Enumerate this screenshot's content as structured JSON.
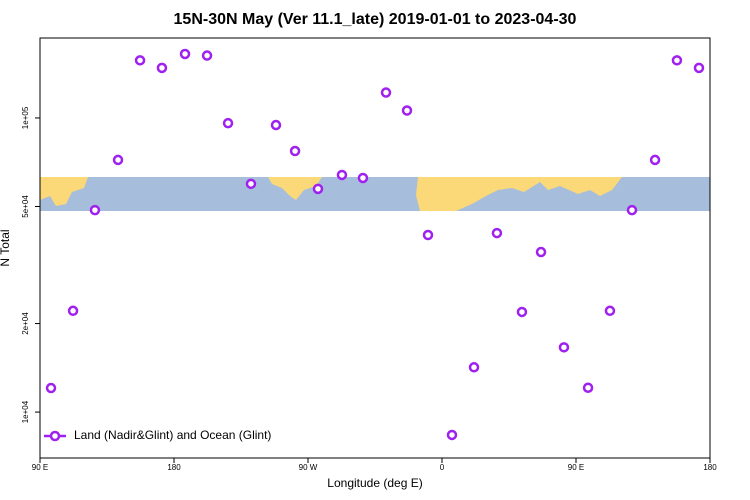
{
  "chart_data": {
    "type": "scatter",
    "title": "15N-30N May (Ver 11.1_late)   2019-01-01 to 2023-04-30",
    "x_label": "Longitude (deg E)",
    "y_label": "N Total",
    "x": [
      97.4,
      112.2,
      126.9,
      142.4,
      157.2,
      171.9,
      187.4,
      202.2,
      216.3,
      231.7,
      248.5,
      261.3,
      276.7,
      292.8,
      306.9,
      322.4,
      336.5,
      350.6,
      366.7,
      381.5,
      396.9,
      413.7,
      426.5,
      441.9,
      458.1,
      472.8,
      487.6,
      503.1,
      517.8,
      532.6
    ],
    "series": [
      {
        "name": "Land (Nadir&Glint) and Ocean (Glint)",
        "color": "#a020f0",
        "values": [
          12070,
          22100,
          48600,
          72000,
          157000,
          148000,
          165000,
          163000,
          96000,
          59700,
          94600,
          77200,
          57400,
          64000,
          62500,
          122000,
          106000,
          40000,
          8360,
          14200,
          40600,
          21900,
          35000,
          16600,
          12100,
          22100,
          48600,
          72000,
          157000,
          148000
        ]
      }
    ],
    "xlim": [
      90,
      540
    ],
    "xticks": [
      {
        "value": 90,
        "label": "90 E"
      },
      180,
      {
        "value": 270,
        "label": "90 W"
      },
      {
        "value": 360,
        "label": "0"
      },
      {
        "value": 450,
        "label": "90 E"
      },
      {
        "value": 540,
        "label": "180"
      }
    ],
    "ylim": [
      6980,
      187000
    ],
    "ylog": true,
    "yticks": [
      {
        "value": 10000,
        "label": "1e+04"
      },
      {
        "value": 20000,
        "label": "2e+04"
      },
      {
        "value": 50000,
        "label": "5e+04"
      },
      {
        "value": 100000,
        "label": "1e+05"
      }
    ],
    "legend": "bottom-left"
  }
}
